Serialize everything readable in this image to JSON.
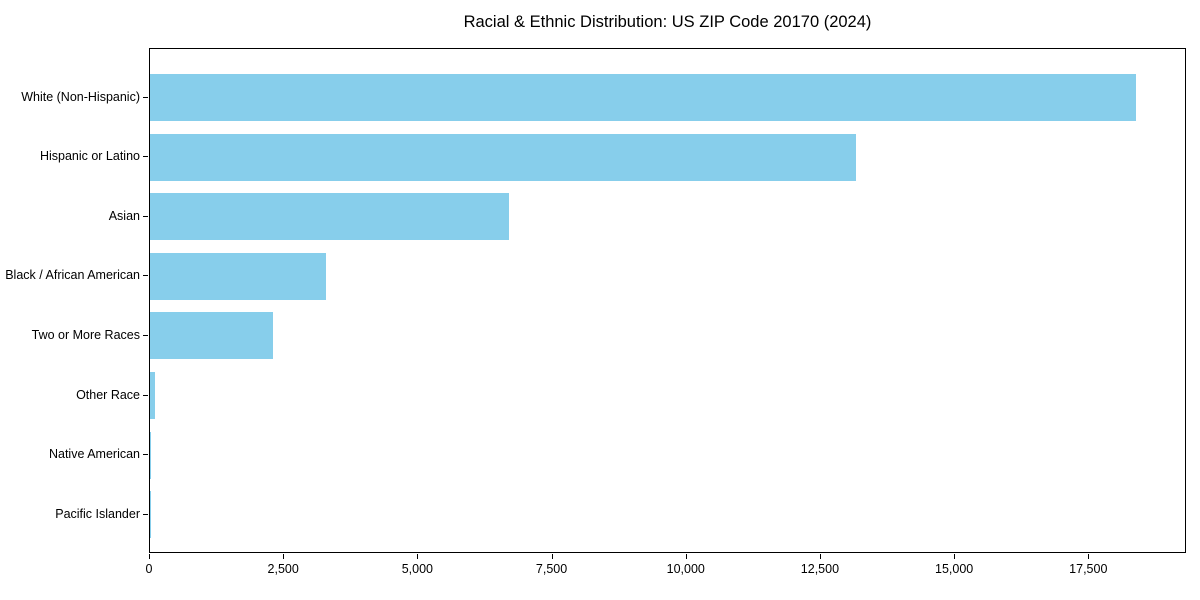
{
  "chart_data": {
    "type": "bar",
    "orientation": "horizontal",
    "title": "Racial & Ethnic Distribution: US ZIP Code 20170 (2024)",
    "categories": [
      "White (Non-Hispanic)",
      "Hispanic or Latino",
      "Asian",
      "Black / African American",
      "Two or More Races",
      "Other Race",
      "Native American",
      "Pacific Islander"
    ],
    "values": [
      18400,
      13180,
      6700,
      3280,
      2300,
      100,
      25,
      8
    ],
    "xlabel": "",
    "ylabel": "",
    "xlim": [
      0,
      19320
    ],
    "x_ticks": [
      0,
      2500,
      5000,
      7500,
      10000,
      12500,
      15000,
      17500
    ],
    "x_tick_labels": [
      "0",
      "2,500",
      "5,000",
      "7,500",
      "10,000",
      "12,500",
      "15,000",
      "17,500"
    ],
    "bar_color": "#87CEEB",
    "spine_color": "#000000",
    "background_color": "#FFFFFF",
    "grid": false,
    "legend": null
  }
}
